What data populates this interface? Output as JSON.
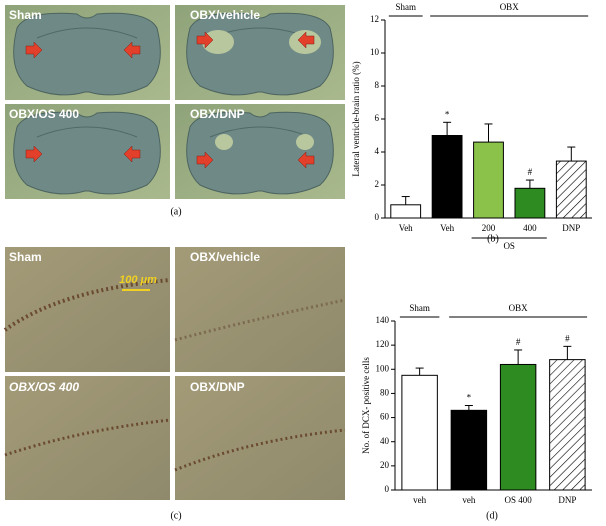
{
  "panel_a": {
    "caption": "(a)",
    "images": [
      {
        "label": "Sham"
      },
      {
        "label": "OBX/vehicle"
      },
      {
        "label": "OBX/OS 400"
      },
      {
        "label": "OBX/DNP"
      }
    ]
  },
  "panel_c": {
    "caption": "(c)",
    "scale_bar": "100 μm",
    "images": [
      {
        "label": "Sham"
      },
      {
        "label": "OBX/vehicle"
      },
      {
        "label": "OBX/OS 400"
      },
      {
        "label": "OBX/DNP"
      }
    ]
  },
  "chart_data": [
    {
      "type": "bar",
      "caption": "(b)",
      "y_label": "Lateral ventricle-brain ratio (%)",
      "categories": [
        "Veh",
        "Veh",
        "200",
        "400",
        "DNP"
      ],
      "values": [
        0.8,
        5.0,
        4.6,
        1.8,
        3.45
      ],
      "errors": [
        0.5,
        0.8,
        1.1,
        0.5,
        0.85
      ],
      "colors": [
        "#ffffff",
        "#000000",
        "#8bc34a",
        "#2e8b22",
        "#ffffff"
      ],
      "hatch": [
        false,
        false,
        false,
        false,
        true
      ],
      "ylim": [
        0,
        12
      ],
      "yticks": [
        0,
        2,
        4,
        6,
        8,
        10,
        12
      ],
      "annotations": [
        {
          "text": "*",
          "bar": 1
        },
        {
          "text": "#",
          "bar": 3
        }
      ],
      "groups": [
        {
          "label": "Sham",
          "from": 0,
          "to": 0,
          "position": "top"
        },
        {
          "label": "OBX",
          "from": 1,
          "to": 4,
          "position": "top"
        },
        {
          "label": "OS",
          "from": 2,
          "to": 3,
          "position": "bottom"
        }
      ]
    },
    {
      "type": "bar",
      "caption": "(d)",
      "y_label": "No. of DCX- positive cells",
      "categories": [
        "veh",
        "veh",
        "OS 400",
        "DNP"
      ],
      "values": [
        95,
        66,
        104,
        108
      ],
      "errors": [
        6,
        4,
        12,
        11
      ],
      "colors": [
        "#ffffff",
        "#000000",
        "#2e8b22",
        "#ffffff"
      ],
      "hatch": [
        false,
        false,
        false,
        true
      ],
      "ylim": [
        0,
        140
      ],
      "yticks": [
        0,
        20,
        40,
        60,
        80,
        100,
        120,
        140
      ],
      "annotations": [
        {
          "text": "*",
          "bar": 1
        },
        {
          "text": "#",
          "bar": 2
        },
        {
          "text": "#",
          "bar": 3
        }
      ],
      "groups": [
        {
          "label": "Sham",
          "from": 0,
          "to": 0,
          "position": "top"
        },
        {
          "label": "OBX",
          "from": 1,
          "to": 3,
          "position": "top"
        }
      ]
    }
  ]
}
